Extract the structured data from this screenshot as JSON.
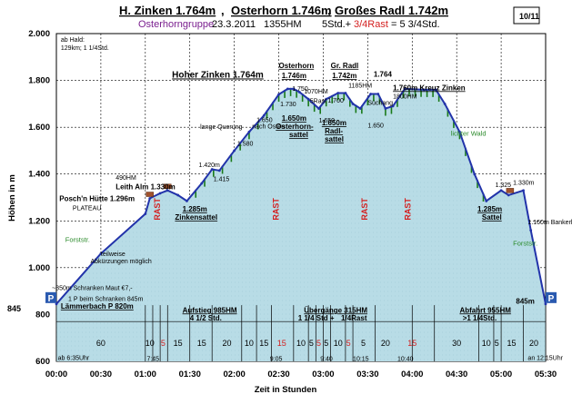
{
  "header": {
    "title_parts": [
      "H. Zinken 1.764m",
      "Osterhorn 1.746m",
      "Großes Radl 1.742m"
    ],
    "title_sep": ",",
    "group": "Osterhorngruppe",
    "date": "23.3.2011",
    "hm": "1355HM",
    "time_a": "5Std.+",
    "time_b": "3/4Rast",
    "time_c": "= 5 3/4Std.",
    "page_box": "10/11"
  },
  "colors": {
    "profile": "#2233aa",
    "fill": "#b8dce6",
    "rast": "#d42020",
    "green": "#2a8a2a",
    "purple": "#7a1f8f",
    "forest": "#1a7a1a"
  },
  "chart_data": {
    "type": "area",
    "xlabel": "Zeit in Stunden",
    "ylabel": "Höhen in m",
    "x_unit": "minutes",
    "xlim": [
      0,
      330
    ],
    "ylim": [
      600,
      2000
    ],
    "x_ticks": [
      "00:00",
      "00:30",
      "01:00",
      "01:30",
      "02:00",
      "02:30",
      "03:00",
      "03:30",
      "04:00",
      "04:30",
      "05:00",
      "05:30"
    ],
    "y_ticks": [
      "600",
      "800",
      "1.000",
      "1.200",
      "1.400",
      "1.600",
      "1.800",
      "2.000"
    ],
    "y_tick_values": [
      600,
      800,
      1000,
      1200,
      1400,
      1600,
      1800,
      2000
    ],
    "profile": [
      [
        0,
        845
      ],
      [
        30,
        1060
      ],
      [
        60,
        1230
      ],
      [
        63,
        1296
      ],
      [
        70,
        1318
      ],
      [
        75,
        1330
      ],
      [
        82,
        1310
      ],
      [
        88,
        1285
      ],
      [
        98,
        1360
      ],
      [
        105,
        1420
      ],
      [
        110,
        1415
      ],
      [
        120,
        1500
      ],
      [
        130,
        1580
      ],
      [
        140,
        1650
      ],
      [
        150,
        1740
      ],
      [
        156,
        1764
      ],
      [
        160,
        1764
      ],
      [
        164,
        1750
      ],
      [
        170,
        1720
      ],
      [
        177,
        1680
      ],
      [
        182,
        1720
      ],
      [
        190,
        1746
      ],
      [
        195,
        1746
      ],
      [
        200,
        1700
      ],
      [
        205,
        1680
      ],
      [
        212,
        1742
      ],
      [
        217,
        1742
      ],
      [
        222,
        1680
      ],
      [
        227,
        1690
      ],
      [
        235,
        1764
      ],
      [
        248,
        1760
      ],
      [
        256,
        1760
      ],
      [
        262,
        1700
      ],
      [
        272,
        1580
      ],
      [
        282,
        1400
      ],
      [
        290,
        1285
      ],
      [
        300,
        1330
      ],
      [
        305,
        1310
      ],
      [
        315,
        1330
      ],
      [
        320,
        1160
      ],
      [
        330,
        845
      ]
    ],
    "rast_x": [
      68,
      148,
      208,
      237
    ],
    "rast_label": "RAST",
    "huts_x": [
      63,
      75,
      306
    ],
    "forest_x": [
      94,
      100,
      106,
      112,
      118,
      124,
      130,
      136,
      142,
      146,
      150,
      154,
      158,
      162,
      166,
      170,
      174,
      178,
      182,
      186,
      190,
      194,
      198,
      202,
      206,
      210,
      214,
      218,
      222,
      226,
      230,
      234,
      238,
      242,
      246,
      250,
      254,
      258,
      264,
      268,
      272,
      276,
      280,
      284,
      288
    ],
    "annotations": [
      {
        "text": "ab Hald:",
        "x": 3,
        "y": 1965,
        "cls": "lbl"
      },
      {
        "text": "129km; 1 1/4Std.",
        "x": 3,
        "y": 1930,
        "cls": "lbl"
      },
      {
        "text": "Hoher Zinken 1.764m",
        "x": 78,
        "y": 1812,
        "cls": "lbl-big"
      },
      {
        "text": "Osterhorn",
        "x": 150,
        "y": 1853,
        "cls": "lbl-bu"
      },
      {
        "text": "1.746m",
        "x": 152,
        "y": 1810,
        "cls": "lbl-bu"
      },
      {
        "text": "Gr. Radl",
        "x": 185,
        "y": 1853,
        "cls": "lbl-bu"
      },
      {
        "text": "1.742m",
        "x": 186,
        "y": 1810,
        "cls": "lbl-bu"
      },
      {
        "text": "1.764",
        "x": 214,
        "y": 1815,
        "cls": "lbl-b"
      },
      {
        "text": "1.760m Kreuz Zinken",
        "x": 227,
        "y": 1758,
        "cls": "lbl-bu"
      },
      {
        "text": "1800HM",
        "x": 227,
        "y": 1723,
        "cls": "lbl"
      },
      {
        "text": "1.750",
        "x": 159,
        "y": 1755,
        "cls": "lbl"
      },
      {
        "text": "1.730",
        "x": 151,
        "y": 1690,
        "cls": "lbl"
      },
      {
        "text": "1070HM",
        "x": 167,
        "y": 1745,
        "cls": "lbl"
      },
      {
        "text": "5Rast",
        "x": 171,
        "y": 1703,
        "cls": "lbl"
      },
      {
        "text": "1.700",
        "x": 183,
        "y": 1705,
        "cls": "lbl"
      },
      {
        "text": "1185HM",
        "x": 197,
        "y": 1770,
        "cls": "lbl"
      },
      {
        "text": "1.650",
        "x": 135,
        "y": 1622,
        "cls": "lbl"
      },
      {
        "text": "nach Osten",
        "x": 132,
        "y": 1595,
        "cls": "lbl"
      },
      {
        "text": "lange Querung",
        "x": 97,
        "y": 1593,
        "cls": "lbl"
      },
      {
        "text": "1.580",
        "x": 122,
        "y": 1522,
        "cls": "lbl"
      },
      {
        "text": "1.650m",
        "x": 152,
        "y": 1627,
        "cls": "lbl-bu"
      },
      {
        "text": "Osterhorn-",
        "x": 148,
        "y": 1592,
        "cls": "lbl-bu"
      },
      {
        "text": "sattel",
        "x": 157,
        "y": 1557,
        "cls": "lbl-bu"
      },
      {
        "text": "1.650",
        "x": 177,
        "y": 1620,
        "cls": "lbl"
      },
      {
        "text": "1.650m",
        "x": 179,
        "y": 1608,
        "cls": "lbl-bu"
      },
      {
        "text": "Radl-",
        "x": 181,
        "y": 1573,
        "cls": "lbl-bu"
      },
      {
        "text": "sattel",
        "x": 181,
        "y": 1538,
        "cls": "lbl-bu"
      },
      {
        "text": "Süchang",
        "x": 210,
        "y": 1695,
        "cls": "lbl"
      },
      {
        "text": "1.650",
        "x": 210,
        "y": 1598,
        "cls": "lbl"
      },
      {
        "text": "lichter Wald",
        "x": 266,
        "y": 1563,
        "cls": "green"
      },
      {
        "text": "1.420m",
        "x": 96,
        "y": 1430,
        "cls": "lbl"
      },
      {
        "text": "1.415",
        "x": 106,
        "y": 1370,
        "cls": "lbl"
      },
      {
        "text": "490HM",
        "x": 40,
        "y": 1375,
        "cls": "lbl"
      },
      {
        "text": "Leith Alm 1.330m",
        "x": 40,
        "y": 1335,
        "cls": "lbl-b"
      },
      {
        "text": "Posch'n Hütte 1.296m",
        "x": 2,
        "y": 1285,
        "cls": "lbl-b"
      },
      {
        "text": "PLATEAU",
        "x": 11,
        "y": 1245,
        "cls": "lbl"
      },
      {
        "text": "1.285m",
        "x": 85,
        "y": 1240,
        "cls": "lbl-bu"
      },
      {
        "text": "Zinkensattel",
        "x": 80,
        "y": 1205,
        "cls": "lbl-bu"
      },
      {
        "text": "Forststr.",
        "x": 6,
        "y": 1110,
        "cls": "green"
      },
      {
        "text": "teilweise",
        "x": 30,
        "y": 1050,
        "cls": "lbl"
      },
      {
        "text": "Abkürzungen möglich",
        "x": 23,
        "y": 1018,
        "cls": "lbl"
      },
      {
        "text": "1.325",
        "x": 296,
        "y": 1345,
        "cls": "lbl"
      },
      {
        "text": "1.330m",
        "x": 308,
        "y": 1355,
        "cls": "lbl"
      },
      {
        "text": "1.285m",
        "x": 284,
        "y": 1240,
        "cls": "lbl-bu"
      },
      {
        "text": "Sattel",
        "x": 287,
        "y": 1205,
        "cls": "lbl-bu"
      },
      {
        "text": "1.160m Bankerl",
        "x": 318,
        "y": 1185,
        "cls": "lbl"
      },
      {
        "text": "Forststr.",
        "x": 308,
        "y": 1095,
        "cls": "green"
      },
      {
        "text": "~850m Schranken  Maut €7,-",
        "x": -3,
        "y": 905,
        "cls": "lbl"
      },
      {
        "text": "1 P beim Schranken 845m",
        "x": 8,
        "y": 858,
        "cls": "lbl"
      },
      {
        "text": "Lämmerbach P 820m",
        "x": 3,
        "y": 825,
        "cls": "lbl-bu"
      },
      {
        "text": "845m",
        "x": 310,
        "y": 847,
        "cls": "lbl-b"
      },
      {
        "text": "ab 6:35Uhr",
        "x": 1,
        "y": 605,
        "cls": "lbl"
      },
      {
        "text": "an 12:15Uhr",
        "x": 318,
        "y": 605,
        "cls": "lbl"
      },
      {
        "text": "7:45",
        "x": 61,
        "y": 602,
        "cls": "lbl"
      },
      {
        "text": "9:05",
        "x": 144,
        "y": 602,
        "cls": "lbl"
      },
      {
        "text": "9:40",
        "x": 178,
        "y": 602,
        "cls": "lbl"
      },
      {
        "text": "10:15",
        "x": 200,
        "y": 602,
        "cls": "lbl"
      },
      {
        "text": "10:40",
        "x": 230,
        "y": 602,
        "cls": "lbl"
      }
    ],
    "mid_labels": [
      {
        "text": "Aufstieg 985HM",
        "x": 85,
        "y": 808,
        "cls": "lbl-bu"
      },
      {
        "text": "4 1/2 Std.",
        "x": 90,
        "y": 775,
        "cls": "lbl-b"
      },
      {
        "text": "Übergänge 315HM",
        "x": 167,
        "y": 808,
        "cls": "lbl-bu"
      },
      {
        "text": "1 1/4 Std +",
        "x": 163,
        "y": 775,
        "cls": "lbl-b"
      },
      {
        "text": "1/4Rast",
        "x": 192,
        "y": 775,
        "cls": "lbl-b"
      },
      {
        "text": "Abfahrt 955HM",
        "x": 272,
        "y": 808,
        "cls": "lbl-bu"
      },
      {
        "text": ">1 1/4Std.",
        "x": 274,
        "y": 775,
        "cls": "lbl-b"
      }
    ],
    "segment_lines": [
      0,
      60,
      65,
      70,
      75,
      90,
      105,
      125,
      135,
      145,
      160,
      170,
      175,
      180,
      185,
      195,
      200,
      215,
      240,
      255,
      285,
      295,
      300,
      315,
      330
    ],
    "segments": [
      {
        "text": "60",
        "x": 30
      },
      {
        "text": "10",
        "x": 63
      },
      {
        "text": "5",
        "x": 72,
        "red": true
      },
      {
        "text": "15",
        "x": 82
      },
      {
        "text": "15",
        "x": 98
      },
      {
        "text": "20",
        "x": 115
      },
      {
        "text": "10",
        "x": 130
      },
      {
        "text": "15",
        "x": 140
      },
      {
        "text": "15",
        "x": 152,
        "red": true
      },
      {
        "text": "10",
        "x": 165
      },
      {
        "text": "5",
        "x": 172
      },
      {
        "text": "5",
        "x": 177,
        "red": true
      },
      {
        "text": "5",
        "x": 182
      },
      {
        "text": "10",
        "x": 190
      },
      {
        "text": "5",
        "x": 197,
        "red": true
      },
      {
        "text": "5",
        "x": 207
      },
      {
        "text": "20",
        "x": 222
      },
      {
        "text": "15",
        "x": 240,
        "red": true
      },
      {
        "text": "30",
        "x": 270
      },
      {
        "text": "10",
        "x": 290
      },
      {
        "text": "5",
        "x": 297
      },
      {
        "text": "15",
        "x": 307
      },
      {
        "text": "20",
        "x": 322
      }
    ],
    "p_markers": [
      {
        "text": "P",
        "side": "left",
        "y": 845,
        "val": "845"
      },
      {
        "text": "P",
        "side": "right",
        "y": 845
      }
    ]
  }
}
